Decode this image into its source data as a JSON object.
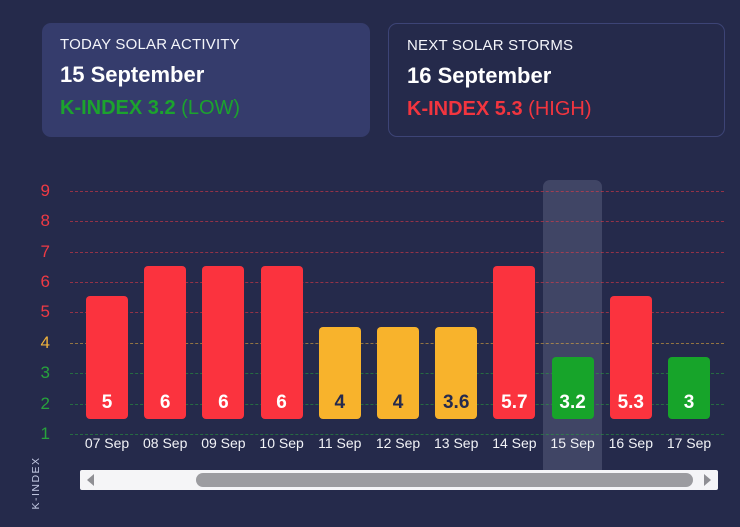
{
  "cards": {
    "today": {
      "title": "TODAY SOLAR ACTIVITY",
      "date": "15 September",
      "kindex": "K-INDEX 3.2",
      "level": "(LOW)"
    },
    "next": {
      "title": "NEXT SOLAR STORMS",
      "date": "16 September",
      "kindex": "K-INDEX 5.3",
      "level": "(HIGH)"
    }
  },
  "chart_data": {
    "type": "bar",
    "ylabel": "K-INDEX",
    "xlabel": "",
    "categories": [
      "07 Sep",
      "08 Sep",
      "09 Sep",
      "10 Sep",
      "11 Sep",
      "12 Sep",
      "13 Sep",
      "14 Sep",
      "15 Sep",
      "16 Sep",
      "17 Sep"
    ],
    "values": [
      5,
      6,
      6,
      6,
      4,
      4,
      3.6,
      5.7,
      3.2,
      5.3,
      3
    ],
    "value_labels": [
      "5",
      "6",
      "6",
      "6",
      "4",
      "4",
      "3.6",
      "5.7",
      "3.2",
      "5.3",
      "3"
    ],
    "bar_levels": [
      "high",
      "high",
      "high",
      "high",
      "moderate",
      "moderate",
      "moderate",
      "high",
      "low",
      "high",
      "low"
    ],
    "highlighted_category": "15 Sep",
    "yticks": [
      9,
      8,
      7,
      6,
      5,
      4,
      3,
      2,
      1
    ],
    "ytick_levels": [
      "high",
      "high",
      "high",
      "high",
      "high",
      "moderate",
      "low",
      "low",
      "low"
    ],
    "ylim": [
      0,
      9.5
    ],
    "grid": true,
    "legend": false
  },
  "colors": {
    "page_bg": "#252a4b",
    "card_bg": "#353c6c",
    "card_border": "#3d4476",
    "green": "#1ca32e",
    "red": "#f2353f",
    "bar_high": "#fb333e",
    "bar_moderate": "#f8b32c",
    "bar_low": "#17a42a",
    "label_on_high": "#ffffff",
    "label_on_moderate": "#252a4e",
    "label_on_low": "#ffffff",
    "axis_high": "#ef3a44",
    "axis_moderate": "#eeb13c",
    "axis_low": "#27a23c",
    "highlight_band": "rgba(205,214,240,0.16)",
    "scroll_track": "#f5f5f7",
    "scroll_thumb": "#9c9ca0",
    "scroll_arrow": "#8f8f94",
    "x_tick": "#f2f3f7",
    "y_title": "#c6cce6"
  },
  "icons": {
    "scroll_left": "left-triangle",
    "scroll_right": "right-triangle"
  }
}
